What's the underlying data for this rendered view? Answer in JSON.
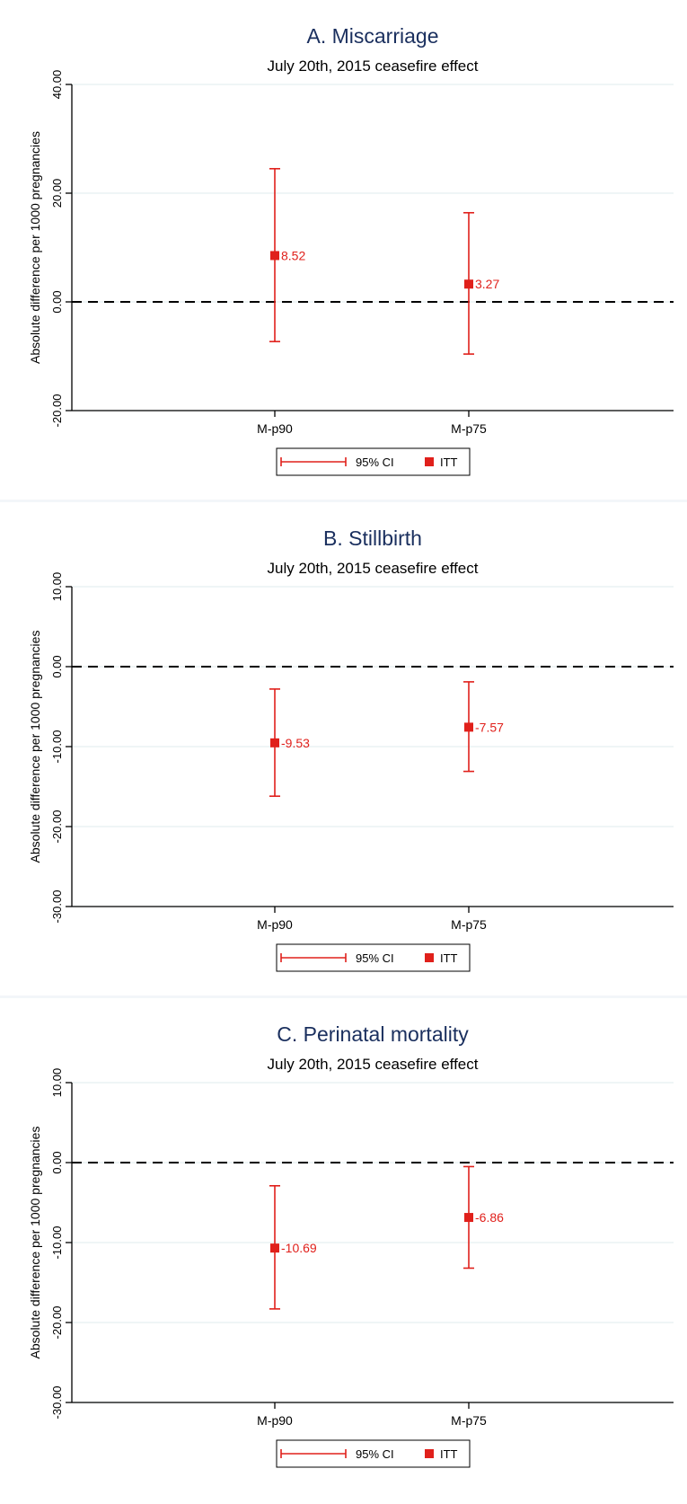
{
  "chart_data": [
    {
      "type": "errorbar",
      "title": "A. Miscarriage",
      "subtitle": "July 20th, 2015 ceasefire effect",
      "ylabel": "Absolute difference per 1000 pregnancies",
      "ylim": [
        -20,
        40
      ],
      "yticks": [
        -20,
        0,
        20,
        40
      ],
      "ytick_labels": [
        "-20.00",
        "0.00",
        "20.00",
        "40.00"
      ],
      "categories": [
        "M-p90",
        "M-p75"
      ],
      "estimates": [
        8.52,
        3.27
      ],
      "estimate_labels": [
        "8.52",
        "3.27"
      ],
      "ci_lower": [
        -7.3,
        -9.6
      ],
      "ci_upper": [
        24.5,
        16.4
      ],
      "reference_line": 0,
      "legend": [
        "95% CI",
        "ITT"
      ],
      "legend_position": "bottom",
      "grid": true
    },
    {
      "type": "errorbar",
      "title": "B. Stillbirth",
      "subtitle": "July 20th, 2015 ceasefire effect",
      "ylabel": "Absolute difference per 1000 pregnancies",
      "ylim": [
        -30,
        10
      ],
      "yticks": [
        -30,
        -20,
        -10,
        0,
        10
      ],
      "ytick_labels": [
        "-30.00",
        "-20.00",
        "-10.00",
        "0.00",
        "10.00"
      ],
      "categories": [
        "M-p90",
        "M-p75"
      ],
      "estimates": [
        -9.53,
        -7.57
      ],
      "estimate_labels": [
        "-9.53",
        "-7.57"
      ],
      "ci_lower": [
        -16.2,
        -13.1
      ],
      "ci_upper": [
        -2.8,
        -1.9
      ],
      "reference_line": 0,
      "legend": [
        "95% CI",
        "ITT"
      ],
      "legend_position": "bottom",
      "grid": true
    },
    {
      "type": "errorbar",
      "title": "C. Perinatal mortality",
      "subtitle": "July 20th, 2015 ceasefire effect",
      "ylabel": "Absolute difference per 1000 pregnancies",
      "ylim": [
        -30,
        10
      ],
      "yticks": [
        -30,
        -20,
        -10,
        0,
        10
      ],
      "ytick_labels": [
        "-30.00",
        "-20.00",
        "-10.00",
        "0.00",
        "10.00"
      ],
      "categories": [
        "M-p90",
        "M-p75"
      ],
      "estimates": [
        -10.69,
        -6.86
      ],
      "estimate_labels": [
        "-10.69",
        "-6.86"
      ],
      "ci_lower": [
        -18.3,
        -13.2
      ],
      "ci_upper": [
        -2.9,
        -0.5
      ],
      "reference_line": 0,
      "legend": [
        "95% CI",
        "ITT"
      ],
      "legend_position": "bottom",
      "grid": true
    }
  ],
  "colors": {
    "title": "#1a2f5e",
    "series": "#e0201b",
    "axis": "#000000",
    "grid": "#eaf2f3",
    "reference": "#000000"
  }
}
